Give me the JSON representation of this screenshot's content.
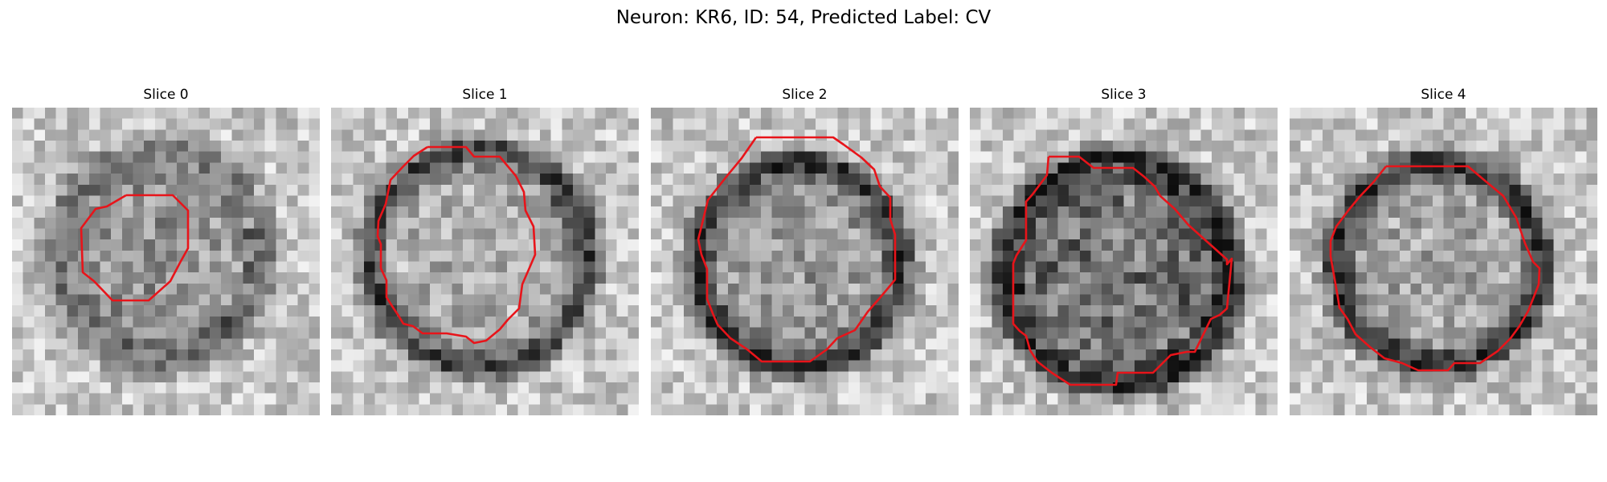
{
  "figure": {
    "title": "Neuron: KR6, ID: 54, Predicted Label: CV",
    "contour_color": "#e8141a",
    "panels": [
      {
        "title": "Slice 0",
        "ring_darkness": 0.35,
        "center_darkness": 0.25,
        "seed": 11
      },
      {
        "title": "Slice 1",
        "ring_darkness": 0.55,
        "center_darkness": 0.12,
        "seed": 23
      },
      {
        "title": "Slice 2",
        "ring_darkness": 0.6,
        "center_darkness": 0.2,
        "seed": 37
      },
      {
        "title": "Slice 3",
        "ring_darkness": 0.65,
        "center_darkness": 0.4,
        "seed": 41
      },
      {
        "title": "Slice 4",
        "ring_darkness": 0.6,
        "center_darkness": 0.15,
        "seed": 59
      }
    ]
  }
}
